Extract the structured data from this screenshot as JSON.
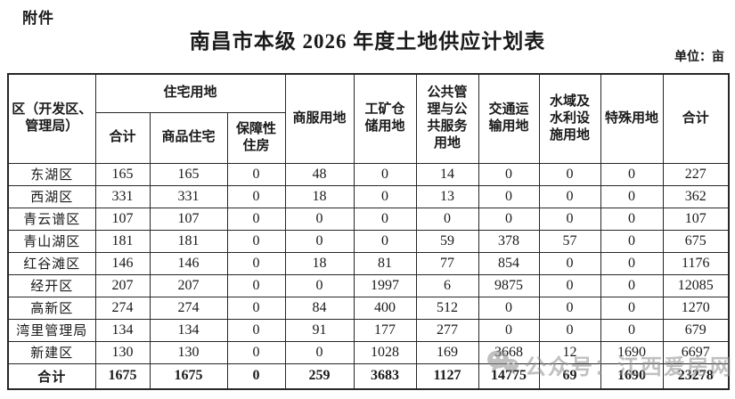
{
  "page": {
    "attachment_label": "附件",
    "title": "南昌市本级 2026 年度土地供应计划表",
    "unit_label": "单位：亩"
  },
  "table": {
    "header": {
      "region": "区（开发区、\n管理局）",
      "residential_group": "住宅用地",
      "sub_columns": [
        "合计",
        "商品住宅",
        "保障性\n住房"
      ],
      "single_columns": [
        "商服用地",
        "工矿仓\n储用地",
        "公共管\n理与公\n共服务\n用地",
        "交通运\n输用地",
        "水域及\n水利设\n施用地",
        "特殊用地",
        "合计"
      ]
    },
    "rows": [
      {
        "region": "东湖区",
        "values": [
          "165",
          "165",
          "0",
          "48",
          "0",
          "14",
          "0",
          "0",
          "0",
          "227"
        ]
      },
      {
        "region": "西湖区",
        "values": [
          "331",
          "331",
          "0",
          "18",
          "0",
          "13",
          "0",
          "0",
          "0",
          "362"
        ]
      },
      {
        "region": "青云谱区",
        "values": [
          "107",
          "107",
          "0",
          "0",
          "0",
          "0",
          "0",
          "0",
          "0",
          "107"
        ]
      },
      {
        "region": "青山湖区",
        "values": [
          "181",
          "181",
          "0",
          "0",
          "0",
          "59",
          "378",
          "57",
          "0",
          "675"
        ]
      },
      {
        "region": "红谷滩区",
        "values": [
          "146",
          "146",
          "0",
          "18",
          "81",
          "77",
          "854",
          "0",
          "0",
          "1176"
        ]
      },
      {
        "region": "经开区",
        "values": [
          "207",
          "207",
          "0",
          "0",
          "1997",
          "6",
          "9875",
          "0",
          "0",
          "12085"
        ]
      },
      {
        "region": "高新区",
        "values": [
          "274",
          "274",
          "0",
          "84",
          "400",
          "512",
          "0",
          "0",
          "0",
          "1270"
        ]
      },
      {
        "region": "湾里管理局",
        "values": [
          "134",
          "134",
          "0",
          "91",
          "177",
          "277",
          "0",
          "0",
          "0",
          "679"
        ]
      },
      {
        "region": "新建区",
        "values": [
          "130",
          "130",
          "0",
          "0",
          "1028",
          "169",
          "3668",
          "12",
          "1690",
          "6697"
        ]
      }
    ],
    "total_row": {
      "region": "合计",
      "values": [
        "1675",
        "1675",
        "0",
        "259",
        "3683",
        "1127",
        "14775",
        "69",
        "1690",
        "23278"
      ]
    }
  },
  "watermark": {
    "text": "公众号：江西爱房网",
    "icon": "wechat-icon"
  },
  "colors": {
    "background": "#ffffff",
    "text": "#1a1a1a",
    "border": "#262626",
    "watermark": "#8e8e8e"
  }
}
